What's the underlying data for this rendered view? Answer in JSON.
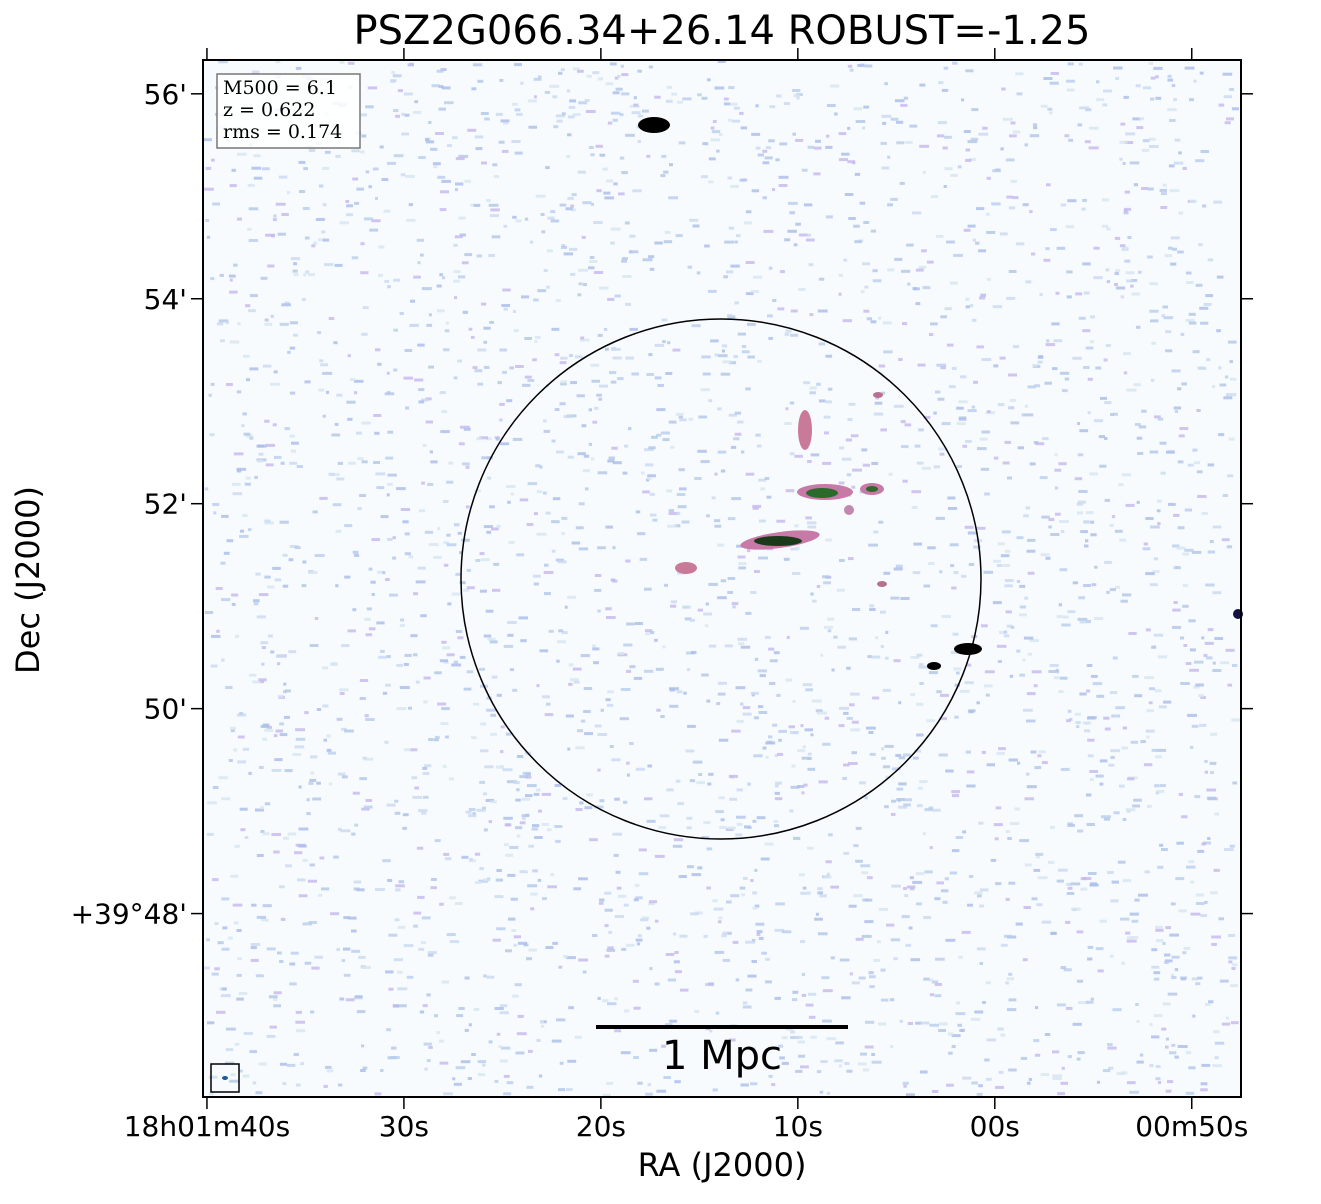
{
  "chart_data": {
    "type": "image",
    "title": "PSZ2G066.34+26.14 ROBUST=-1.25",
    "xlabel": "RA (J2000)",
    "ylabel": "Dec (J2000)",
    "xlim": [
      100.2,
      47.5
    ],
    "ylim": [
      46.21,
      56.33
    ],
    "xticks": [
      {
        "value": 100,
        "label": "18h01m40s"
      },
      {
        "value": 90,
        "label": "30s"
      },
      {
        "value": 80,
        "label": "20s"
      },
      {
        "value": 70,
        "label": "10s"
      },
      {
        "value": 60,
        "label": "00s"
      },
      {
        "value": 50,
        "label": "00m50s"
      }
    ],
    "yticks": [
      {
        "value": 48,
        "label": "+39°48'"
      },
      {
        "value": 50,
        "label": "50'"
      },
      {
        "value": 52,
        "label": "52'"
      },
      {
        "value": 54,
        "label": "54'"
      },
      {
        "value": 56,
        "label": "56'"
      }
    ],
    "annotation": [
      "M500 = 6.1",
      "z = 0.622",
      "rms = 0.174"
    ],
    "scalebar_label": "1 Mpc"
  }
}
